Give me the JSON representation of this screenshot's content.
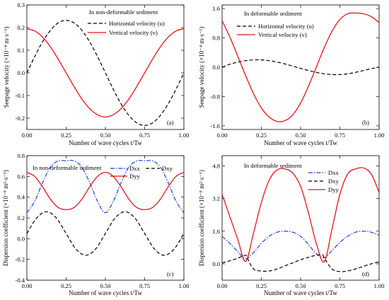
{
  "chart_data": [
    {
      "type": "line",
      "panel_label": "(a)",
      "annotation": "In non-deformable sediment",
      "ylabel": "Seepage velocity (×10⁻⁴ m·s⁻¹)",
      "xlabel": "Number of wave cycles t/Tw",
      "xlim": [
        0,
        1
      ],
      "ylim": [
        -0.25,
        0.3
      ],
      "xticks": [
        "0.00",
        "0.25",
        "0.50",
        "0.75",
        "1.00"
      ],
      "yticks": [
        "-0.2",
        "-0.1",
        "0.0",
        "0.1",
        "0.2",
        "0.3"
      ],
      "legend_position": "top-right",
      "series": [
        {
          "name": "Horizontal velocity (u)",
          "color": "#000000",
          "dash": "dashed",
          "x": [
            0,
            0.05,
            0.1,
            0.15,
            0.2,
            0.25,
            0.3,
            0.35,
            0.4,
            0.45,
            0.5,
            0.55,
            0.6,
            0.65,
            0.7,
            0.75,
            0.8,
            0.85,
            0.9,
            0.95,
            1.0
          ],
          "y": [
            0.0,
            0.072,
            0.137,
            0.188,
            0.221,
            0.232,
            0.221,
            0.188,
            0.137,
            0.072,
            0.0,
            -0.072,
            -0.137,
            -0.188,
            -0.221,
            -0.232,
            -0.221,
            -0.188,
            -0.137,
            -0.072,
            0.0
          ]
        },
        {
          "name": "Vertical velocity (v)",
          "color": "#e8141b",
          "dash": "solid",
          "x": [
            0,
            0.05,
            0.1,
            0.15,
            0.2,
            0.25,
            0.3,
            0.35,
            0.4,
            0.45,
            0.5,
            0.55,
            0.6,
            0.65,
            0.7,
            0.75,
            0.8,
            0.85,
            0.9,
            0.95,
            1.0
          ],
          "y": [
            0.195,
            0.185,
            0.158,
            0.115,
            0.06,
            0.0,
            -0.06,
            -0.115,
            -0.158,
            -0.185,
            -0.195,
            -0.185,
            -0.158,
            -0.115,
            -0.06,
            0.0,
            0.06,
            0.115,
            0.158,
            0.185,
            0.195
          ]
        }
      ]
    },
    {
      "type": "line",
      "panel_label": "(b)",
      "annotation": "In deformable sediment",
      "ylabel": "Seepage velocity (×10⁻⁴ m·s⁻¹)",
      "xlabel": "Number of wave cycles t/Tw",
      "xlim": [
        0,
        1
      ],
      "ylim": [
        -1.7,
        1.7
      ],
      "xticks": [
        "0.00",
        "0.25",
        "0.50",
        "0.75",
        "1.00"
      ],
      "yticks": [
        "-1.6",
        "-0.8",
        "0.0",
        "0.8",
        "1.6"
      ],
      "legend_position": "top-left",
      "series": [
        {
          "name": "Horizontal velocity (u)",
          "color": "#000000",
          "dash": "dashed",
          "x": [
            0,
            0.05,
            0.1,
            0.15,
            0.2,
            0.25,
            0.3,
            0.35,
            0.4,
            0.45,
            0.5,
            0.55,
            0.6,
            0.65,
            0.7,
            0.75,
            0.8,
            0.85,
            0.9,
            0.95,
            1.0
          ],
          "y": [
            0.0,
            0.08,
            0.14,
            0.18,
            0.2,
            0.2,
            0.18,
            0.14,
            0.09,
            0.03,
            -0.03,
            -0.09,
            -0.14,
            -0.18,
            -0.2,
            -0.2,
            -0.18,
            -0.14,
            -0.09,
            -0.04,
            0.0
          ]
        },
        {
          "name": "Vertical velocity (v)",
          "color": "#e8141b",
          "dash": "solid",
          "x": [
            0,
            0.05,
            0.1,
            0.15,
            0.2,
            0.25,
            0.3,
            0.35,
            0.4,
            0.45,
            0.5,
            0.55,
            0.6,
            0.65,
            0.7,
            0.75,
            0.8,
            0.85,
            0.9,
            0.95,
            1.0
          ],
          "y": [
            1.27,
            0.82,
            0.3,
            -0.23,
            -0.72,
            -1.11,
            -1.36,
            -1.48,
            -1.46,
            -1.3,
            -0.98,
            -0.52,
            0.0,
            0.53,
            0.98,
            1.3,
            1.46,
            1.48,
            1.46,
            1.38,
            1.22
          ]
        }
      ]
    },
    {
      "type": "line",
      "panel_label": "(c)",
      "annotation": "In non-deformable sediment",
      "ylabel": "Dispersion coefficient (×10⁻⁸ m²·s⁻¹)",
      "xlabel": "Number of wave cycles t/Tw",
      "xlim": [
        0,
        1
      ],
      "ylim": [
        -0.4,
        0.8
      ],
      "xticks": [
        "0.00",
        "0.25",
        "0.50",
        "0.75",
        "1.00"
      ],
      "yticks": [
        "-0.4",
        "-0.2",
        "0.0",
        "0.2",
        "0.4",
        "0.6",
        "0.8"
      ],
      "legend_position": "top-right",
      "series": [
        {
          "name": "Dxx",
          "color": "#1d3fd6",
          "dash": "dashdot",
          "x": [
            0,
            0.05,
            0.1,
            0.15,
            0.2,
            0.25,
            0.3,
            0.35,
            0.4,
            0.45,
            0.5,
            0.55,
            0.6,
            0.65,
            0.7,
            0.75,
            0.8,
            0.85,
            0.9,
            0.95,
            1.0
          ],
          "y": [
            0.25,
            0.36,
            0.54,
            0.69,
            0.75,
            0.75,
            0.75,
            0.69,
            0.54,
            0.36,
            0.25,
            0.36,
            0.54,
            0.69,
            0.75,
            0.75,
            0.75,
            0.69,
            0.54,
            0.36,
            0.25
          ]
        },
        {
          "name": "Dxy",
          "color": "#000000",
          "dash": "dashed",
          "x": [
            0,
            0.0625,
            0.125,
            0.1875,
            0.25,
            0.3125,
            0.375,
            0.4375,
            0.5,
            0.5625,
            0.625,
            0.6875,
            0.75,
            0.8125,
            0.875,
            0.9375,
            1.0
          ],
          "y": [
            0.05,
            0.2,
            0.26,
            0.2,
            0.05,
            -0.1,
            -0.16,
            -0.1,
            0.05,
            0.2,
            0.26,
            0.2,
            0.05,
            -0.1,
            -0.16,
            -0.1,
            0.05
          ]
        },
        {
          "name": "Dyy",
          "color": "#e8141b",
          "dash": "solid",
          "x": [
            0,
            0.05,
            0.1,
            0.15,
            0.2,
            0.25,
            0.3,
            0.35,
            0.4,
            0.45,
            0.5,
            0.55,
            0.6,
            0.65,
            0.7,
            0.75,
            0.8,
            0.85,
            0.9,
            0.95,
            1.0
          ],
          "y": [
            0.64,
            0.6,
            0.5,
            0.38,
            0.3,
            0.28,
            0.3,
            0.38,
            0.5,
            0.6,
            0.64,
            0.6,
            0.5,
            0.38,
            0.3,
            0.28,
            0.3,
            0.38,
            0.5,
            0.6,
            0.64
          ]
        }
      ]
    },
    {
      "type": "line",
      "panel_label": "(d)",
      "annotation": "In deformable sediment",
      "ylabel": "Dispersion coefficient (×10⁻⁸ m²·s⁻¹)",
      "xlabel": "Number of wave cycles t/Tw",
      "xlim": [
        0,
        1
      ],
      "ylim": [
        -0.8,
        5.3
      ],
      "xticks": [
        "0.00",
        "0.25",
        "0.50",
        "0.75",
        "1.00"
      ],
      "yticks": [
        "0.0",
        "1.6",
        "3.2",
        "4.8"
      ],
      "legend_position": "top-right",
      "series": [
        {
          "name": "Dxx",
          "color": "#1d3fd6",
          "dash": "dashdot",
          "x": [
            0,
            0.05,
            0.1,
            0.15,
            0.2,
            0.25,
            0.3,
            0.35,
            0.4,
            0.45,
            0.5,
            0.55,
            0.6,
            0.65,
            0.7,
            0.75,
            0.8,
            0.85,
            0.9,
            0.95,
            1.0
          ],
          "y": [
            1.35,
            1.0,
            0.6,
            0.25,
            0.55,
            1.0,
            1.35,
            1.55,
            1.6,
            1.55,
            1.35,
            0.95,
            0.5,
            0.3,
            0.65,
            1.05,
            1.35,
            1.55,
            1.6,
            1.55,
            1.4
          ]
        },
        {
          "name": "Dxy",
          "color": "#000000",
          "dash": "dashed",
          "x": [
            0,
            0.05,
            0.1,
            0.15,
            0.16,
            0.2,
            0.25,
            0.3,
            0.35,
            0.4,
            0.45,
            0.5,
            0.55,
            0.6,
            0.64,
            0.65,
            0.7,
            0.75,
            0.8,
            0.85,
            0.9,
            0.95,
            1.0
          ],
          "y": [
            0.05,
            0.15,
            0.28,
            0.42,
            0.3,
            -0.25,
            -0.35,
            -0.35,
            -0.25,
            -0.1,
            0.05,
            0.2,
            0.32,
            0.42,
            0.45,
            0.3,
            -0.25,
            -0.38,
            -0.35,
            -0.25,
            -0.12,
            0.0,
            0.1
          ]
        },
        {
          "name": "Dyy",
          "color": "#e8141b",
          "dash": "solid",
          "x": [
            0,
            0.05,
            0.1,
            0.15,
            0.2,
            0.25,
            0.3,
            0.35,
            0.4,
            0.45,
            0.5,
            0.55,
            0.6,
            0.65,
            0.7,
            0.75,
            0.8,
            0.85,
            0.9,
            0.95,
            1.0
          ],
          "y": [
            3.4,
            2.3,
            1.2,
            0.12,
            1.5,
            3.0,
            4.1,
            4.6,
            4.65,
            4.45,
            3.8,
            2.5,
            1.0,
            0.1,
            1.7,
            3.4,
            4.4,
            4.65,
            4.7,
            4.4,
            3.5
          ]
        }
      ]
    }
  ]
}
